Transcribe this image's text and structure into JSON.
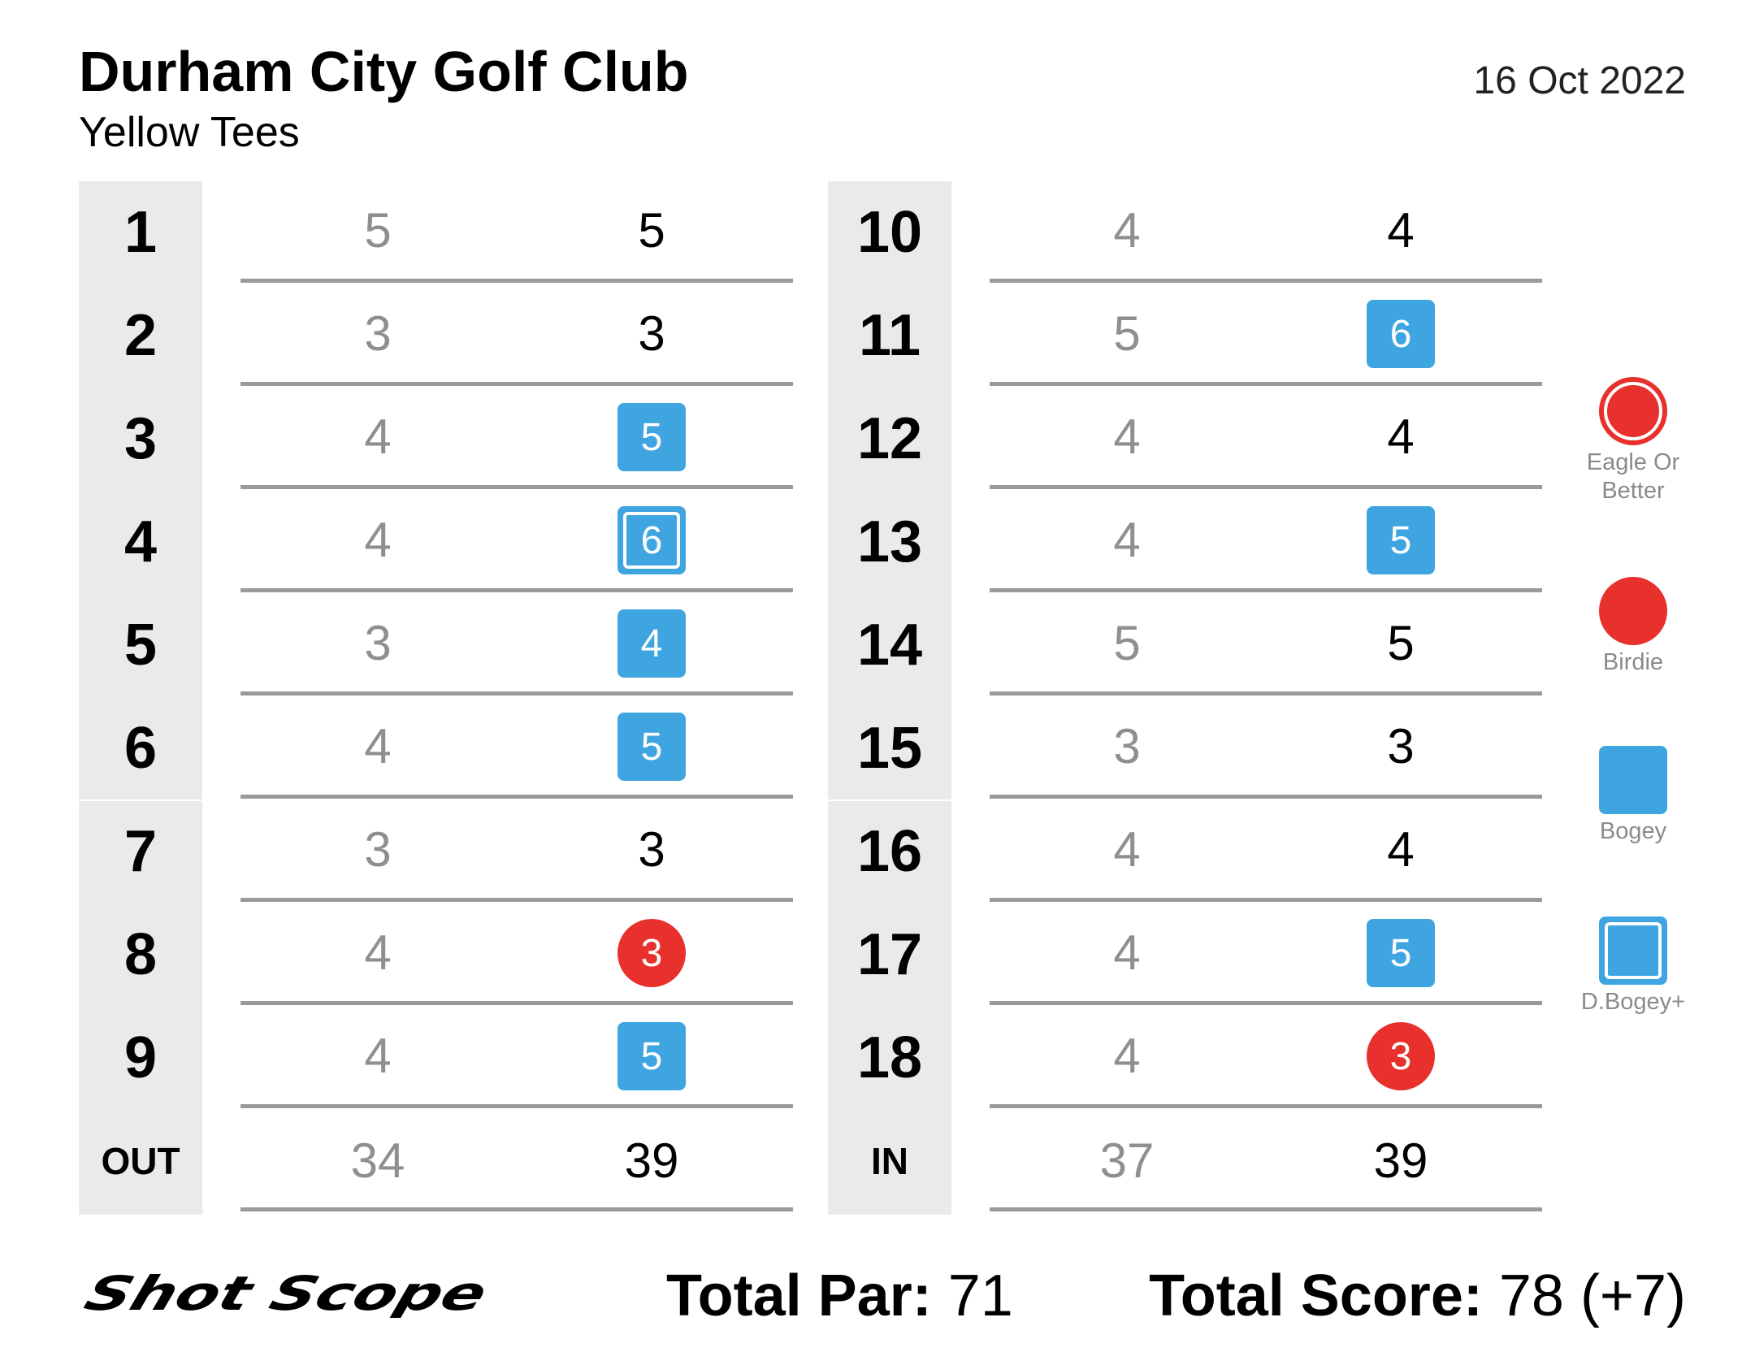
{
  "header": {
    "club_name": "Durham City Golf Club",
    "tees": "Yellow Tees",
    "date": "16 Oct 2022"
  },
  "colors": {
    "bogey": "#3fa5e0",
    "birdie": "#e8312c",
    "par_text": "#8f8f8f",
    "hole_column_bg": "#eaeaea",
    "row_line": "#9a9a9a"
  },
  "front_nine": {
    "holes": [
      {
        "hole": "1",
        "par": "5",
        "score": "5",
        "result": "par"
      },
      {
        "hole": "2",
        "par": "3",
        "score": "3",
        "result": "par"
      },
      {
        "hole": "3",
        "par": "4",
        "score": "5",
        "result": "bogey"
      },
      {
        "hole": "4",
        "par": "4",
        "score": "6",
        "result": "double-bogey"
      },
      {
        "hole": "5",
        "par": "3",
        "score": "4",
        "result": "bogey"
      },
      {
        "hole": "6",
        "par": "4",
        "score": "5",
        "result": "bogey"
      },
      {
        "hole": "7",
        "par": "3",
        "score": "3",
        "result": "par"
      },
      {
        "hole": "8",
        "par": "4",
        "score": "3",
        "result": "birdie"
      },
      {
        "hole": "9",
        "par": "4",
        "score": "5",
        "result": "bogey"
      }
    ],
    "total_label": "OUT",
    "total_par": "34",
    "total_score": "39"
  },
  "back_nine": {
    "holes": [
      {
        "hole": "10",
        "par": "4",
        "score": "4",
        "result": "par"
      },
      {
        "hole": "11",
        "par": "5",
        "score": "6",
        "result": "bogey"
      },
      {
        "hole": "12",
        "par": "4",
        "score": "4",
        "result": "par"
      },
      {
        "hole": "13",
        "par": "4",
        "score": "5",
        "result": "bogey"
      },
      {
        "hole": "14",
        "par": "5",
        "score": "5",
        "result": "par"
      },
      {
        "hole": "15",
        "par": "3",
        "score": "3",
        "result": "par"
      },
      {
        "hole": "16",
        "par": "4",
        "score": "4",
        "result": "par"
      },
      {
        "hole": "17",
        "par": "4",
        "score": "5",
        "result": "bogey"
      },
      {
        "hole": "18",
        "par": "4",
        "score": "3",
        "result": "birdie"
      }
    ],
    "total_label": "IN",
    "total_par": "37",
    "total_score": "39"
  },
  "legend": [
    {
      "label": "Eagle Or Better",
      "symbol": "eagle"
    },
    {
      "label": "Birdie",
      "symbol": "birdie"
    },
    {
      "label": "Bogey",
      "symbol": "bogey"
    },
    {
      "label": "D.Bogey+",
      "symbol": "double-bogey"
    }
  ],
  "footer": {
    "brand": "Shot Scope",
    "total_par_label": "Total Par:",
    "total_par_value": "71",
    "total_score_label": "Total Score:",
    "total_score_value": "78 (+7)"
  }
}
